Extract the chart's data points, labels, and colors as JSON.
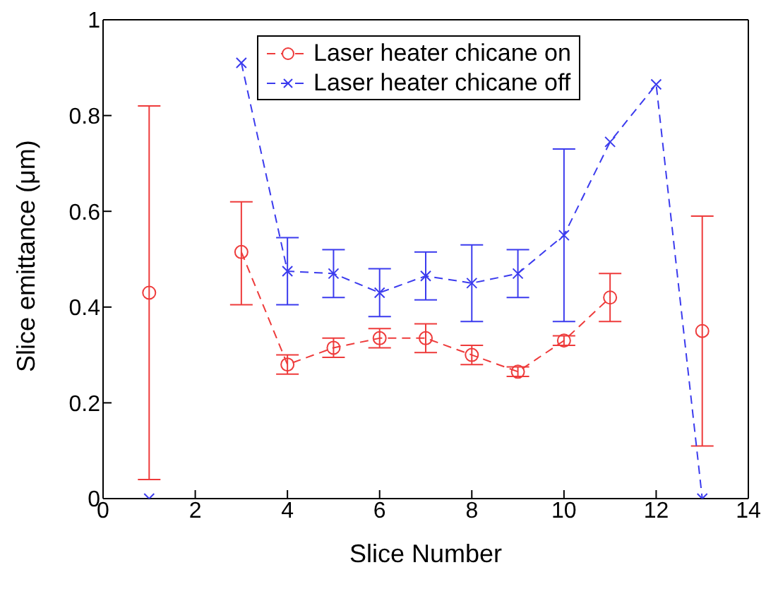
{
  "chart_data": {
    "type": "line",
    "xlabel": "Slice Number",
    "ylabel": "Slice emittance (μm)",
    "x": [
      1,
      2,
      3,
      4,
      5,
      6,
      7,
      8,
      9,
      10,
      11,
      12,
      13
    ],
    "xlim": [
      0,
      14
    ],
    "xticks": [
      0,
      2,
      4,
      6,
      8,
      10,
      12,
      14
    ],
    "ylim": [
      0,
      1
    ],
    "yticks": [
      0,
      0.2,
      0.4,
      0.6,
      0.8,
      1
    ],
    "grid": false,
    "legend": "top",
    "line_style": "dashed",
    "series": [
      {
        "name": "Laser heater chicane on",
        "color": "#ee3b3b",
        "marker": "circle",
        "values": [
          0.43,
          null,
          0.515,
          0.28,
          0.315,
          0.335,
          0.335,
          0.3,
          0.265,
          0.33,
          0.42,
          null,
          0.35
        ],
        "errors": [
          [
            0.04,
            0.82
          ],
          null,
          [
            0.405,
            0.62
          ],
          [
            0.26,
            0.3
          ],
          [
            0.295,
            0.335
          ],
          [
            0.315,
            0.355
          ],
          [
            0.305,
            0.365
          ],
          [
            0.28,
            0.32
          ],
          [
            0.255,
            0.275
          ],
          [
            0.32,
            0.34
          ],
          [
            0.37,
            0.47
          ],
          null,
          [
            0.11,
            0.59
          ]
        ]
      },
      {
        "name": "Laser heater chicane off",
        "color": "#3b3bee",
        "marker": "cross",
        "values": [
          0,
          null,
          0.91,
          0.475,
          0.47,
          0.43,
          0.465,
          0.45,
          0.47,
          0.55,
          0.745,
          0.865,
          0
        ],
        "errors": [
          null,
          null,
          null,
          [
            0.405,
            0.545
          ],
          [
            0.42,
            0.52
          ],
          [
            0.38,
            0.48
          ],
          [
            0.415,
            0.515
          ],
          [
            0.37,
            0.53
          ],
          [
            0.42,
            0.52
          ],
          [
            0.37,
            0.73
          ],
          null,
          null,
          null
        ]
      }
    ]
  }
}
